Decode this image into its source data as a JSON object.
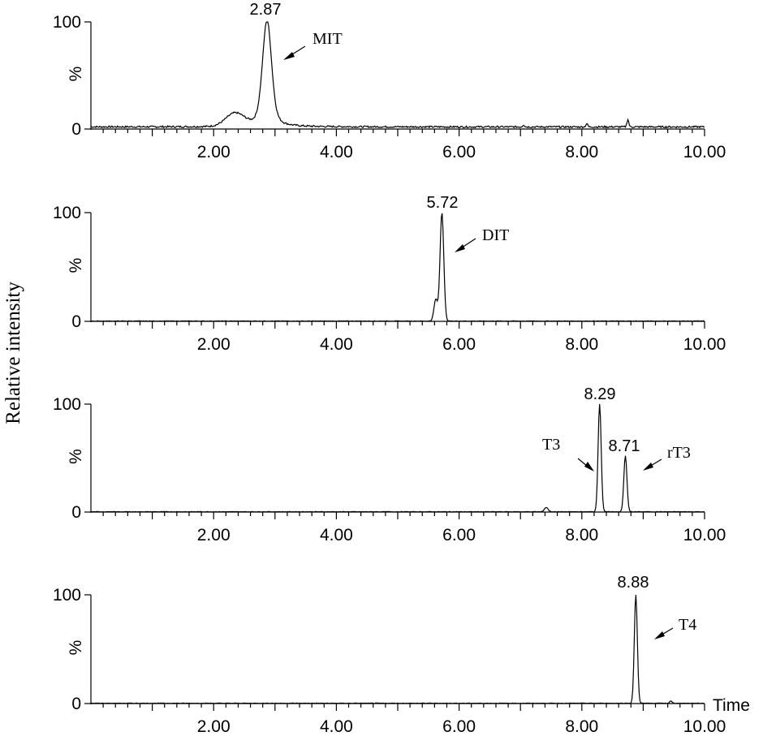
{
  "chart_data": {
    "type": "line",
    "ylabel": "Relative intensity",
    "xlabel_right": "Time",
    "x_range": [
      0,
      10
    ],
    "x_tick_labels": [
      "2.00",
      "4.00",
      "6.00",
      "8.00",
      "10.00"
    ],
    "y_tick_labels": [
      "0",
      "100"
    ],
    "y_unit": "%",
    "panels": [
      {
        "series_name": "MIT",
        "peaks": [
          {
            "rt": 2.87,
            "label": "2.87",
            "height": 100,
            "width": 0.16
          }
        ],
        "background": [
          {
            "x": 2.35,
            "y": 12,
            "w": 0.3
          },
          {
            "x": 7.05,
            "y": 2,
            "w": 0.03
          },
          {
            "x": 8.08,
            "y": 3,
            "w": 0.03
          },
          {
            "x": 8.75,
            "y": 7,
            "w": 0.03
          }
        ],
        "annotation": {
          "text": "MIT"
        }
      },
      {
        "series_name": "DIT",
        "peaks": [
          {
            "rt": 5.72,
            "label": "5.72",
            "height": 100,
            "width": 0.06
          }
        ],
        "background": [
          {
            "x": 5.62,
            "y": 20,
            "w": 0.06
          }
        ],
        "annotation": {
          "text": "DIT"
        }
      },
      {
        "series_name": "T3 / rT3",
        "peaks": [
          {
            "rt": 8.29,
            "label": "8.29",
            "height": 100,
            "width": 0.05
          },
          {
            "rt": 8.71,
            "label": "8.71",
            "height": 52,
            "width": 0.05
          }
        ],
        "background": [
          {
            "x": 7.42,
            "y": 4,
            "w": 0.06
          }
        ],
        "annotations": [
          {
            "text": "T3"
          },
          {
            "text": "rT3"
          }
        ]
      },
      {
        "series_name": "T4",
        "peaks": [
          {
            "rt": 8.88,
            "label": "8.88",
            "height": 100,
            "width": 0.05
          }
        ],
        "background": [
          {
            "x": 9.45,
            "y": 2,
            "w": 0.04
          }
        ],
        "annotation": {
          "text": "T4"
        }
      }
    ]
  }
}
